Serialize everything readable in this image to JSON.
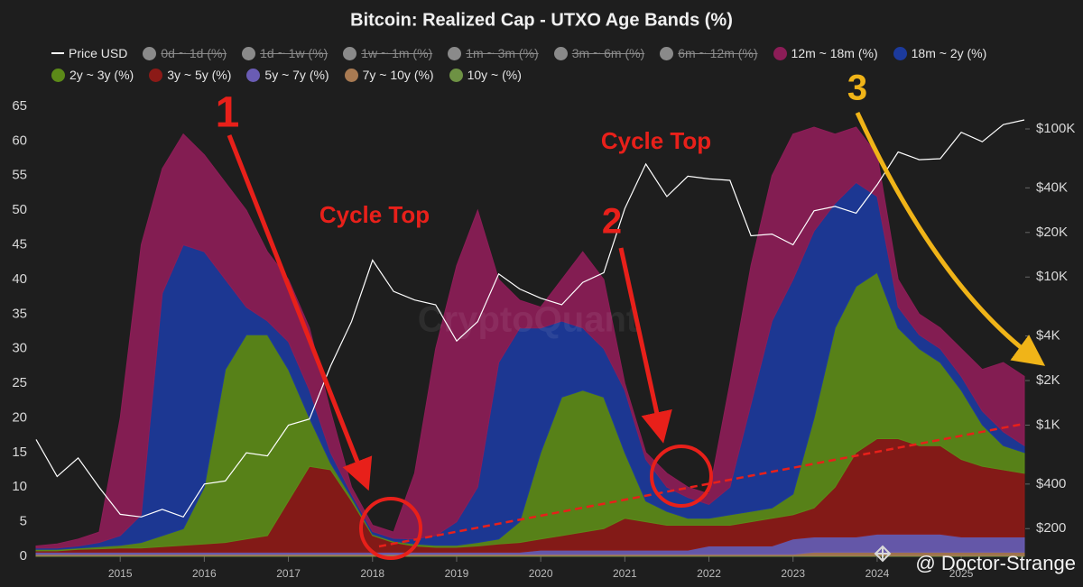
{
  "chart_data": {
    "type": "area",
    "title": "Bitcoin: Realized Cap - UTXO Age Bands (%)",
    "watermark": "CryptoQuant",
    "attribution": "@ Doctor-Strange",
    "x": [
      2014.0,
      2014.25,
      2014.5,
      2014.75,
      2015.0,
      2015.25,
      2015.5,
      2015.75,
      2016.0,
      2016.25,
      2016.5,
      2016.75,
      2017.0,
      2017.25,
      2017.5,
      2017.75,
      2018.0,
      2018.25,
      2018.5,
      2018.75,
      2019.0,
      2019.25,
      2019.5,
      2019.75,
      2020.0,
      2020.25,
      2020.5,
      2020.75,
      2021.0,
      2021.25,
      2021.5,
      2021.75,
      2022.0,
      2022.25,
      2022.5,
      2022.75,
      2023.0,
      2023.25,
      2023.5,
      2023.75,
      2024.0,
      2024.25,
      2024.5,
      2024.75,
      2025.0,
      2025.25,
      2025.5,
      2025.75
    ],
    "xlim": [
      2014.0,
      2025.75
    ],
    "xticks": [
      2015,
      2016,
      2017,
      2018,
      2019,
      2020,
      2021,
      2022,
      2023,
      2024,
      2025
    ],
    "ylim": [
      0,
      65
    ],
    "yticks": [
      0,
      5,
      10,
      15,
      20,
      25,
      30,
      35,
      40,
      45,
      50,
      55,
      60,
      65
    ],
    "y2lim": [
      130,
      142000
    ],
    "y2log": true,
    "y2ticks": [
      {
        "value": 200,
        "label": "$200"
      },
      {
        "value": 400,
        "label": "$400"
      },
      {
        "value": 1000,
        "label": "$1K"
      },
      {
        "value": 2000,
        "label": "$2K"
      },
      {
        "value": 4000,
        "label": "$4K"
      },
      {
        "value": 10000,
        "label": "$10K"
      },
      {
        "value": 20000,
        "label": "$20K"
      },
      {
        "value": 40000,
        "label": "$40K"
      },
      {
        "value": 100000,
        "label": "$100K"
      }
    ],
    "grid": false,
    "stacked": true,
    "series": [
      {
        "name": "Price USD",
        "type": "line",
        "axis": "y2",
        "color": "#ffffff",
        "values": [
          800,
          450,
          600,
          380,
          250,
          240,
          270,
          240,
          400,
          420,
          650,
          620,
          1000,
          1100,
          2500,
          5000,
          13000,
          8000,
          7000,
          6500,
          3700,
          5000,
          10500,
          8300,
          7200,
          6500,
          9200,
          10700,
          29000,
          58000,
          35000,
          48000,
          46000,
          45000,
          19000,
          19500,
          16500,
          28000,
          30000,
          27000,
          42000,
          70000,
          62000,
          63000,
          95000,
          82000,
          107000,
          115000
        ]
      },
      {
        "name": "0d ~ 1d (%)",
        "hidden": true
      },
      {
        "name": "1d ~ 1w (%)",
        "hidden": true
      },
      {
        "name": "1w ~ 1m (%)",
        "hidden": true
      },
      {
        "name": "1m ~ 3m (%)",
        "hidden": true
      },
      {
        "name": "3m ~ 6m (%)",
        "hidden": true
      },
      {
        "name": "6m ~ 12m (%)",
        "hidden": true
      },
      {
        "name": "12m ~ 18m (%)",
        "color": "#8c1d57",
        "values": [
          0.3,
          0.6,
          1,
          1.5,
          17,
          39,
          18,
          16,
          14,
          14,
          14,
          10,
          9,
          9,
          6,
          1,
          0.9,
          0.9,
          9.5,
          27,
          37,
          40,
          12,
          4,
          3,
          6,
          11,
          10,
          1,
          1,
          2,
          1.5,
          1.5,
          15,
          20,
          21,
          21,
          15,
          10,
          8,
          6,
          4,
          3,
          3,
          4,
          6,
          10,
          10
        ]
      },
      {
        "name": "18m ~ 2y (%)",
        "color": "#1c3a9c",
        "values": [
          0.2,
          0.2,
          0.3,
          0.6,
          1.4,
          4,
          35,
          41,
          34,
          13,
          4,
          2,
          4,
          4,
          1.5,
          0.5,
          0.4,
          0.4,
          0.7,
          1.4,
          3.4,
          8,
          25.5,
          28,
          18,
          11,
          9,
          7,
          9,
          6,
          3.5,
          3,
          2,
          4,
          15.5,
          27,
          31,
          27,
          18,
          15,
          11,
          3,
          2,
          2,
          2,
          2,
          2,
          1
        ]
      },
      {
        "name": "2y ~ 3y (%)",
        "color": "#5c8a18",
        "values": [
          0.2,
          0.2,
          0.2,
          0.3,
          0.4,
          0.8,
          1.6,
          2.4,
          8.2,
          25,
          29.5,
          29,
          19,
          7,
          1,
          0.5,
          0.2,
          0.2,
          0.3,
          0.3,
          0.3,
          0.5,
          0.7,
          3,
          12.5,
          20,
          20.5,
          19,
          9.5,
          3,
          2,
          1,
          1,
          1.5,
          1.5,
          1.5,
          3,
          13,
          23,
          24,
          24,
          16,
          14,
          12,
          10,
          6,
          3.5,
          3
        ]
      },
      {
        "name": "3y ~ 5y (%)",
        "color": "#8c1a17",
        "values": [
          0.2,
          0.2,
          0.4,
          0.5,
          0.6,
          0.6,
          0.8,
          1,
          1.2,
          1.4,
          1.9,
          2.4,
          7.4,
          12.4,
          11.9,
          7.4,
          2.4,
          1.4,
          0.9,
          0.7,
          0.7,
          0.9,
          1.2,
          1.4,
          1.6,
          2.1,
          2.6,
          3.1,
          4.6,
          4.1,
          3.6,
          3.6,
          3,
          3,
          3.5,
          4,
          3.5,
          4.2,
          7.2,
          12.2,
          13.8,
          13.8,
          12.8,
          12.8,
          11.2,
          10.2,
          9.7,
          9.2
        ]
      },
      {
        "name": "5y ~ 7y (%)",
        "color": "#6a5cb4",
        "values": [
          0.3,
          0.3,
          0.3,
          0.3,
          0.3,
          0.3,
          0.3,
          0.3,
          0.3,
          0.3,
          0.3,
          0.3,
          0.3,
          0.3,
          0.3,
          0.3,
          0.3,
          0.3,
          0.3,
          0.3,
          0.3,
          0.3,
          0.3,
          0.3,
          0.6,
          0.6,
          0.6,
          0.6,
          0.6,
          0.6,
          0.6,
          0.6,
          1.2,
          1.2,
          1.2,
          1.2,
          2.2,
          2.2,
          2.2,
          2.2,
          2.6,
          2.6,
          2.6,
          2.6,
          2.2,
          2.2,
          2.2,
          2.2
        ]
      },
      {
        "name": "7y ~ 10y (%)",
        "color": "#a87a52",
        "values": [
          0.2,
          0.2,
          0.2,
          0.2,
          0.2,
          0.2,
          0.2,
          0.2,
          0.2,
          0.2,
          0.2,
          0.2,
          0.2,
          0.2,
          0.2,
          0.2,
          0.2,
          0.2,
          0.2,
          0.2,
          0.2,
          0.2,
          0.2,
          0.2,
          0.2,
          0.2,
          0.2,
          0.2,
          0.2,
          0.2,
          0.2,
          0.2,
          0.2,
          0.2,
          0.2,
          0.2,
          0.2,
          0.5,
          0.5,
          0.5,
          0.5,
          0.5,
          0.5,
          0.5,
          0.5,
          0.5,
          0.5,
          0.5
        ]
      },
      {
        "name": "10y ~ (%)",
        "color": "#6e9244",
        "values": [
          0.1,
          0.1,
          0.1,
          0.1,
          0.1,
          0.1,
          0.1,
          0.1,
          0.1,
          0.1,
          0.1,
          0.1,
          0.1,
          0.1,
          0.1,
          0.1,
          0.1,
          0.1,
          0.1,
          0.1,
          0.1,
          0.1,
          0.1,
          0.1,
          0.1,
          0.1,
          0.1,
          0.1,
          0.1,
          0.1,
          0.1,
          0.1,
          0.1,
          0.1,
          0.1,
          0.1,
          0.1,
          0.1,
          0.1,
          0.1,
          0.1,
          0.1,
          0.1,
          0.1,
          0.1,
          0.1,
          0.1,
          0.1
        ]
      }
    ],
    "annotations": [
      {
        "text": "1",
        "color": "#e8201a"
      },
      {
        "text": "Cycle Top",
        "color": "#e8201a"
      },
      {
        "text": "2",
        "color": "#e8201a"
      },
      {
        "text": "Cycle Top",
        "color": "#e8201a"
      },
      {
        "text": "3",
        "color": "#f0b418"
      }
    ]
  }
}
